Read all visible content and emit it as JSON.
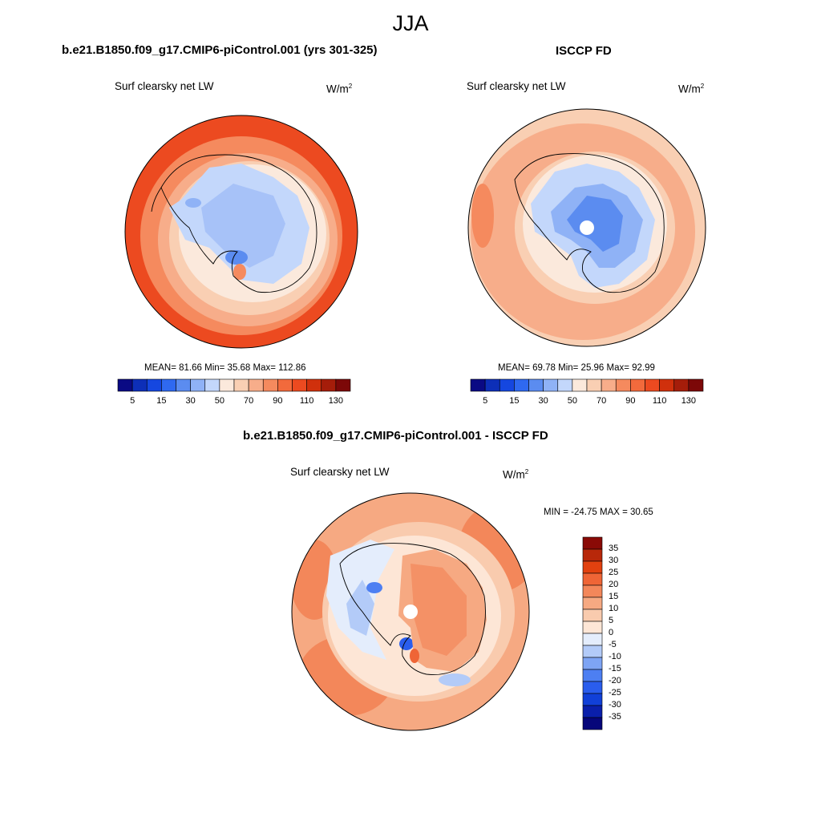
{
  "title": "JJA",
  "palette": {
    "abs": [
      "#0a0a84",
      "#0d2fb8",
      "#1547e0",
      "#2f69f0",
      "#5b8cf0",
      "#8fb2f6",
      "#c3d7fb",
      "#fbe9dc",
      "#f9cfb3",
      "#f7ad8a",
      "#f58a5e",
      "#f26a3c",
      "#ec4a20",
      "#d0300c",
      "#a51d0a",
      "#7c0808"
    ],
    "diff": [
      "#06067a",
      "#0a1fab",
      "#1140d8",
      "#2a5ded",
      "#4d7ff2",
      "#7ea4f4",
      "#b3cbf8",
      "#e4edfc",
      "#fde6d6",
      "#f9cbae",
      "#f6a982",
      "#f3875a",
      "#ef6536",
      "#e2410f",
      "#b8280a",
      "#8a0a06"
    ],
    "ocean_band": "#f58a5e",
    "ring_outer": "#f26a3c"
  },
  "panels": [
    {
      "title": "b.e21.B1850.f09_g17.CMIP6-piControl.001 (yrs 301-325)",
      "left_label": "Surf clearsky net LW",
      "units_base": "W/m",
      "units_sup": "2",
      "stats": "MEAN=  81.66  Min=  35.68  Max= 112.86",
      "colorbar_ticks": [
        "5",
        "15",
        "30",
        "50",
        "70",
        "90",
        "110",
        "130"
      ]
    },
    {
      "title": "ISCCP FD",
      "left_label": "Surf clearsky net LW",
      "units_base": "W/m",
      "units_sup": "2",
      "stats": "MEAN=  69.78  Min=  25.96  Max=  92.99",
      "colorbar_ticks": [
        "5",
        "15",
        "30",
        "50",
        "70",
        "90",
        "110",
        "130"
      ]
    },
    {
      "title": "b.e21.B1850.f09_g17.CMIP6-piControl.001 - ISCCP FD",
      "left_label": "Surf clearsky net LW",
      "units_base": "W/m",
      "units_sup": "2",
      "stats": "MIN = -24.75 MAX =  30.65",
      "colorbar_ticks": [
        "35",
        "30",
        "25",
        "20",
        "15",
        "10",
        "5",
        "0",
        "-5",
        "-10",
        "-15",
        "-20",
        "-25",
        "-30",
        "-35"
      ]
    }
  ]
}
